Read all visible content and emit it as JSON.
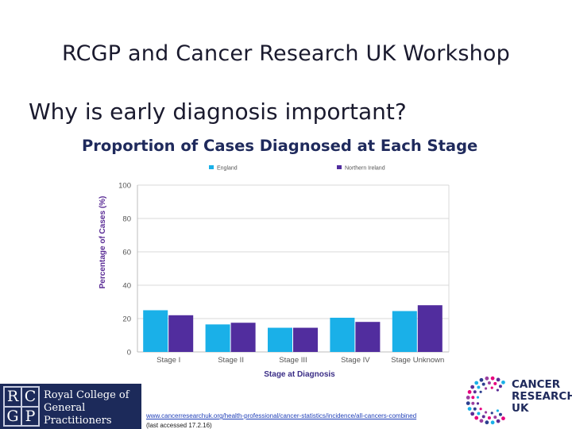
{
  "slide": {
    "title": "RCGP and Cancer Research UK Workshop",
    "subtitle": "Why is early diagnosis important?"
  },
  "chart_data": {
    "type": "bar",
    "title": "Proportion of Cases Diagnosed at Each Stage",
    "xlabel": "Stage at Diagnosis",
    "ylabel": "Percentage of Cases (%)",
    "ylim": [
      0,
      100
    ],
    "yticks": [
      0,
      20,
      40,
      60,
      80,
      100
    ],
    "grid": true,
    "legend_position": "top",
    "categories": [
      "Stage I",
      "Stage II",
      "Stage III",
      "Stage IV",
      "Stage Unknown"
    ],
    "series": [
      {
        "name": "England",
        "color": "#1ab0e8",
        "values": [
          25,
          16.5,
          14.5,
          20.5,
          24.5
        ]
      },
      {
        "name": "Northern Ireland",
        "color": "#512d9e",
        "values": [
          22,
          17.5,
          14.5,
          18,
          28
        ]
      }
    ]
  },
  "footer": {
    "rcgp": {
      "monogram": [
        "R",
        "C",
        "G",
        "P"
      ],
      "name_line1": "Royal College of",
      "name_line2": "General Practitioners"
    },
    "source_url": "www.cancerresearchuk.org/health-professional/cancer-statistics/incidence/all-cancers-combined",
    "source_note": "(last accessed 17.2.16)",
    "cruk": {
      "line1": "CANCER",
      "line2": "RESEARCH",
      "line3": "UK"
    }
  }
}
